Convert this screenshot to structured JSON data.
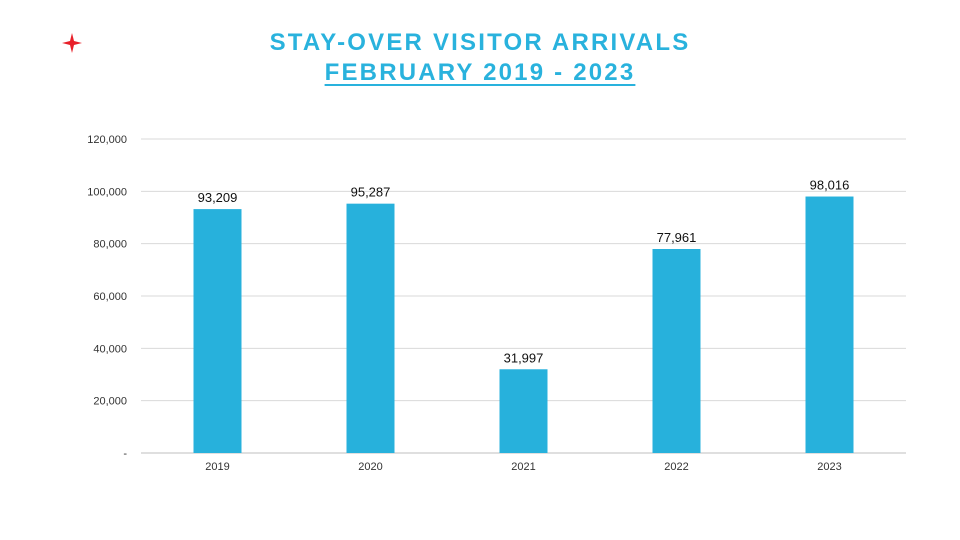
{
  "slide": {
    "logo_icon": "red-four-point-star-icon",
    "logo_color": "#e8202a",
    "title_color": "#29b2dd"
  },
  "chart_data": {
    "type": "bar",
    "title": "STAY-OVER VISITOR ARRIVALS",
    "subtitle": "FEBRUARY 2019 - 2023",
    "categories": [
      "2019",
      "2020",
      "2021",
      "2022",
      "2023"
    ],
    "values": [
      93209,
      95287,
      31997,
      77961,
      98016
    ],
    "value_labels": [
      "93,209",
      "95,287",
      "31,997",
      "77,961",
      "98,016"
    ],
    "ylim": [
      0,
      120000
    ],
    "y_ticks": [
      0,
      20000,
      40000,
      60000,
      80000,
      100000,
      120000
    ],
    "y_tick_labels": [
      "-",
      "20,000",
      "40,000",
      "60,000",
      "80,000",
      "100,000",
      "120,000"
    ],
    "xlabel": "",
    "ylabel": "",
    "grid": true,
    "legend": "none",
    "bar_color": "#27b1dc",
    "grid_color": "#d9d9d9"
  }
}
